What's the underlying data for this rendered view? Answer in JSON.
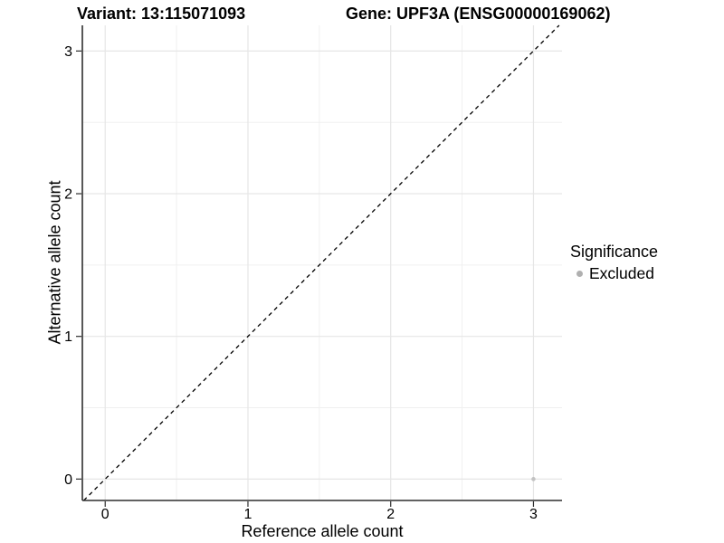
{
  "chart_data": {
    "type": "scatter",
    "title_left": "Variant: 13:115071093",
    "title_right": "Gene: UPF3A (ENSG00000169062)",
    "xlabel": "Reference allele count",
    "ylabel": "Alternative allele count",
    "xlim": [
      -0.16,
      3.2
    ],
    "ylim": [
      -0.15,
      3.18
    ],
    "xticks": [
      0,
      1,
      2,
      3
    ],
    "yticks": [
      0,
      1,
      2,
      3
    ],
    "xticks_minor": [
      0.5,
      1.5,
      2.5
    ],
    "yticks_minor": [
      0.5,
      1.5,
      2.5
    ],
    "grid": "major+minor",
    "identity_line": {
      "slope": 1,
      "intercept": 0,
      "style": "dashed",
      "color": "#000000"
    },
    "series": [
      {
        "name": "Excluded",
        "color": "#c2c2c2",
        "points": [
          {
            "x": 3,
            "y": 0
          }
        ]
      }
    ],
    "legend": {
      "title": "Significance",
      "position": "right",
      "entries": [
        {
          "label": "Excluded",
          "color": "#b0b0b0",
          "marker": "circle"
        }
      ]
    },
    "colors": {
      "grid_major": "#e6e6e6",
      "grid_minor": "#f0f0f0",
      "axis_line": "#2e2e2e",
      "tick": "#2e2e2e",
      "text": "#000000"
    }
  }
}
